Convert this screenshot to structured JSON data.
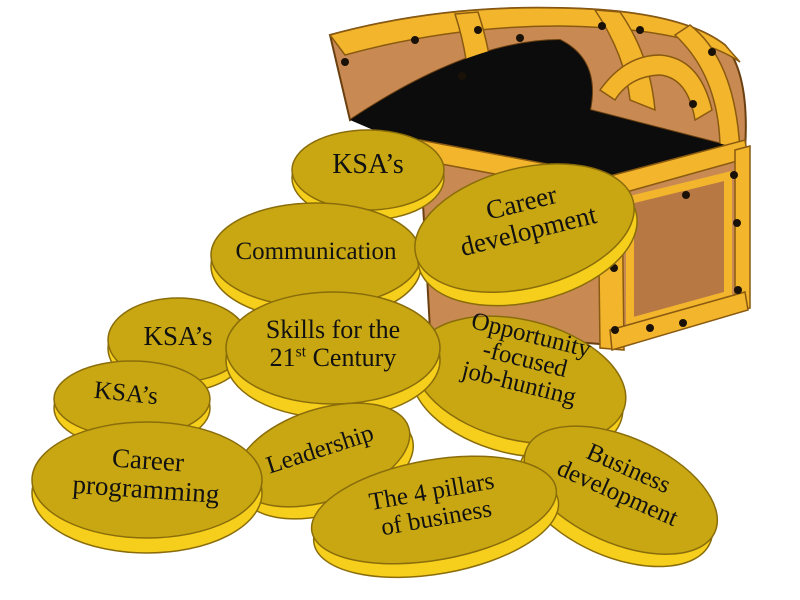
{
  "colors": {
    "chest_wood": "#c88a52",
    "chest_gold": "#f2b52c",
    "chest_gold_dark": "#c9851e",
    "chest_inside": "#0c0c0c",
    "coin_face": "#c8a713",
    "coin_rim": "#f6cf1c",
    "coin_outline": "#8a6d0a",
    "text": "#111111"
  },
  "coins": {
    "ksa_top": {
      "lines": [
        "KSA’s"
      ]
    },
    "career_development": {
      "lines": [
        "Career",
        "development"
      ]
    },
    "communication": {
      "lines": [
        "Communication"
      ]
    },
    "ksa_left": {
      "lines": [
        "KSA’s"
      ]
    },
    "skills": {
      "line1": "Skills for the",
      "line2_pre": "21",
      "line2_sup": "st",
      "line2_post": " Century"
    },
    "opportunity": {
      "lines": [
        "Opportunity",
        "-focused",
        "job-hunting"
      ]
    },
    "ksa_small": {
      "lines": [
        "KSA’s"
      ]
    },
    "career_programming": {
      "lines": [
        "Career",
        "programming"
      ]
    },
    "leadership": {
      "lines": [
        "Leadership"
      ]
    },
    "business_development": {
      "lines": [
        "Business",
        "development"
      ]
    },
    "four_pillars": {
      "lines": [
        "The 4 pillars",
        "of business"
      ]
    }
  }
}
